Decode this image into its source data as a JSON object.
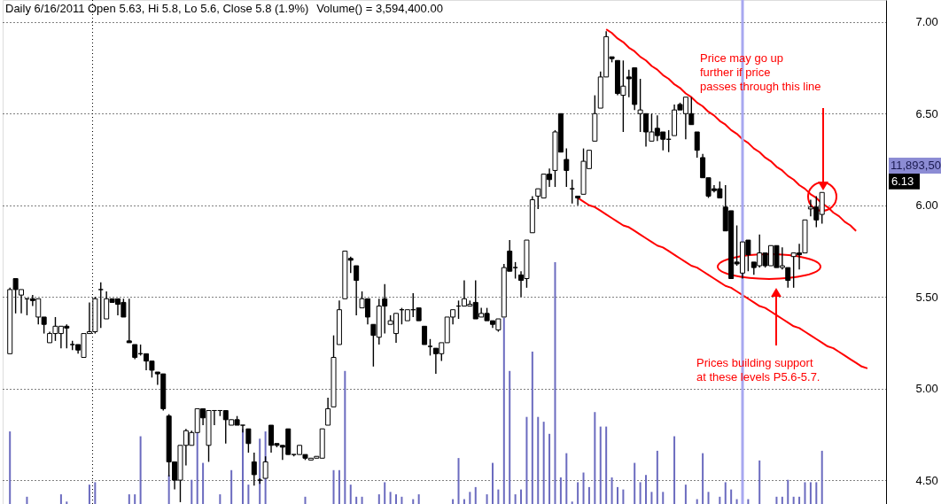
{
  "chart_data": {
    "type": "candlestick",
    "title": "Daily 6/16/2011 Open 5.63, Hi 5.8, Lo 5.6, Close 5.8 (1.9%)",
    "subtitle": "Volume() = 3,594,400.00",
    "categories": [
      null,
      null,
      null,
      null,
      null,
      null,
      null,
      null,
      null,
      null,
      null,
      null,
      null,
      null,
      null,
      null,
      null,
      null,
      null,
      null,
      null,
      null,
      null,
      null,
      null,
      null,
      null,
      null,
      null,
      null,
      null,
      null,
      null,
      null,
      null,
      null,
      null,
      null,
      null,
      null,
      null,
      null,
      null,
      null,
      null,
      null,
      null,
      null,
      null,
      null,
      null,
      null,
      null,
      null,
      null,
      null,
      null,
      null,
      null,
      null,
      null,
      null,
      null,
      null,
      null,
      null,
      null,
      null,
      null,
      null,
      null,
      null,
      null,
      null,
      null,
      null,
      null,
      null,
      null,
      null,
      null,
      null,
      null,
      null,
      null,
      null,
      null,
      null,
      null,
      null,
      null,
      null,
      null,
      null,
      null,
      null,
      null,
      null,
      null,
      null,
      null,
      null,
      null,
      null,
      null,
      null,
      null,
      null,
      null,
      null,
      null,
      null,
      null,
      null,
      null,
      null,
      null,
      null,
      null,
      null,
      null,
      null,
      null,
      null,
      null,
      null,
      null,
      null,
      null,
      null,
      null,
      null,
      null,
      null,
      null,
      null,
      null,
      null,
      null,
      null,
      null,
      null,
      null,
      null,
      null,
      null,
      null,
      null,
      null,
      null,
      null,
      null,
      null,
      null
    ],
    "ohlc": [
      [
        5.19,
        5.55,
        5.19,
        5.54
      ],
      [
        5.6,
        5.6,
        5.41,
        5.54
      ],
      [
        5.51,
        5.54,
        5.41,
        5.54
      ],
      [
        5.49,
        5.49,
        5.4,
        5.49
      ],
      [
        5.49,
        5.51,
        5.45,
        5.48
      ],
      [
        5.39,
        5.49,
        5.35,
        5.49
      ],
      [
        5.39,
        5.39,
        5.3,
        5.35
      ],
      [
        5.25,
        5.31,
        5.25,
        5.3
      ],
      [
        5.3,
        5.39,
        5.26,
        5.34
      ],
      [
        5.3,
        5.34,
        5.22,
        5.34
      ],
      [
        5.34,
        5.35,
        5.22,
        5.33
      ],
      [
        5.24,
        5.26,
        5.21,
        5.24
      ],
      [
        5.24,
        5.24,
        5.19,
        5.21
      ],
      [
        5.17,
        5.3,
        5.17,
        5.3
      ],
      [
        5.3,
        5.47,
        5.3,
        5.31
      ],
      [
        5.31,
        5.5,
        5.3,
        5.49
      ],
      [
        5.54,
        5.58,
        5.33,
        5.54
      ],
      [
        5.38,
        5.53,
        5.38,
        5.49
      ],
      [
        5.49,
        5.49,
        5.47,
        5.47
      ],
      [
        5.49,
        5.49,
        5.4,
        5.46
      ],
      [
        5.47,
        5.49,
        5.39,
        5.39
      ],
      [
        5.26,
        5.49,
        5.25,
        5.25
      ],
      [
        5.24,
        5.24,
        5.16,
        5.17
      ],
      [
        5.19,
        5.24,
        5.18,
        5.19
      ],
      [
        5.19,
        5.19,
        5.1,
        5.15
      ],
      [
        5.15,
        5.15,
        5.06,
        5.1
      ],
      [
        5.09,
        5.09,
        5.02,
        5.08
      ],
      [
        5.08,
        5.08,
        4.88,
        4.89
      ],
      [
        4.85,
        4.86,
        4.52,
        4.6
      ],
      [
        4.6,
        4.6,
        4.45,
        4.5
      ],
      [
        4.5,
        4.69,
        4.38,
        4.69
      ],
      [
        4.69,
        4.78,
        4.58,
        4.77
      ],
      [
        4.69,
        4.77,
        4.69,
        4.76
      ],
      [
        4.76,
        4.89,
        4.76,
        4.89
      ],
      [
        4.89,
        4.89,
        4.8,
        4.84
      ],
      [
        4.69,
        4.88,
        4.6,
        4.88
      ],
      [
        4.88,
        4.88,
        4.8,
        4.88
      ],
      [
        4.88,
        4.88,
        4.85,
        4.88
      ],
      [
        4.88,
        4.88,
        4.7,
        4.83
      ],
      [
        4.8,
        4.83,
        4.8,
        4.83
      ],
      [
        4.83,
        4.85,
        4.8,
        4.8
      ],
      [
        4.8,
        4.8,
        4.76,
        4.8
      ],
      [
        4.78,
        4.78,
        4.65,
        4.7
      ],
      [
        4.6,
        4.65,
        4.47,
        4.53
      ],
      [
        4.5,
        4.51,
        4.48,
        4.5
      ],
      [
        4.51,
        4.63,
        4.51,
        4.6
      ],
      [
        4.8,
        4.8,
        4.65,
        4.69
      ],
      [
        4.7,
        4.7,
        4.68,
        4.69
      ],
      [
        4.69,
        4.69,
        4.61,
        4.68
      ],
      [
        4.78,
        4.78,
        4.64,
        4.64
      ],
      [
        4.64,
        4.64,
        4.63,
        4.64
      ],
      [
        4.64,
        4.69,
        4.64,
        4.69
      ],
      [
        4.64,
        4.64,
        4.61,
        4.62
      ],
      [
        4.61,
        4.62,
        4.61,
        4.62
      ],
      [
        4.62,
        4.63,
        4.62,
        4.63
      ],
      [
        4.62,
        4.78,
        4.62,
        4.78
      ],
      [
        4.8,
        4.95,
        4.8,
        4.89
      ],
      [
        4.9,
        5.29,
        4.9,
        5.17
      ],
      [
        5.24,
        5.48,
        5.24,
        5.43
      ],
      [
        5.49,
        5.75,
        5.49,
        5.75
      ],
      [
        5.71,
        5.72,
        5.63,
        5.7
      ],
      [
        5.67,
        5.67,
        5.4,
        5.59
      ],
      [
        5.44,
        5.53,
        5.44,
        5.49
      ],
      [
        5.49,
        5.49,
        5.35,
        5.39
      ],
      [
        5.35,
        5.35,
        5.12,
        5.29
      ],
      [
        5.28,
        5.49,
        5.24,
        5.45
      ],
      [
        5.49,
        5.57,
        5.3,
        5.45
      ],
      [
        5.35,
        5.4,
        5.35,
        5.37
      ],
      [
        5.3,
        5.41,
        5.25,
        5.41
      ],
      [
        5.43,
        5.44,
        5.35,
        5.43
      ],
      [
        5.37,
        5.43,
        5.37,
        5.43
      ],
      [
        5.43,
        5.52,
        5.39,
        5.43
      ],
      [
        5.44,
        5.44,
        5.37,
        5.37
      ],
      [
        5.34,
        5.34,
        5.24,
        5.24
      ],
      [
        5.23,
        5.27,
        5.18,
        5.23
      ],
      [
        5.22,
        5.22,
        5.08,
        5.19
      ],
      [
        5.19,
        5.25,
        5.15,
        5.25
      ],
      [
        5.25,
        5.39,
        5.25,
        5.39
      ],
      [
        5.39,
        5.43,
        5.35,
        5.43
      ],
      [
        5.45,
        5.48,
        5.38,
        5.45
      ],
      [
        5.45,
        5.59,
        5.45,
        5.49
      ],
      [
        5.45,
        5.48,
        5.45,
        5.46
      ],
      [
        5.47,
        5.59,
        5.38,
        5.38
      ],
      [
        5.39,
        5.44,
        5.39,
        5.41
      ],
      [
        5.41,
        5.44,
        5.37,
        5.37
      ],
      [
        5.37,
        5.37,
        5.33,
        5.35
      ],
      [
        5.32,
        5.38,
        5.31,
        5.38
      ],
      [
        5.39,
        5.68,
        5.39,
        5.66
      ],
      [
        5.75,
        5.81,
        5.64,
        5.64
      ],
      [
        5.66,
        5.69,
        5.6,
        5.66
      ],
      [
        5.62,
        5.64,
        5.5,
        5.59
      ],
      [
        5.6,
        5.81,
        5.55,
        5.81
      ],
      [
        5.85,
        6.05,
        5.85,
        6.03
      ],
      [
        6.05,
        6.09,
        5.98,
        6.09
      ],
      [
        6.04,
        6.17,
        6.04,
        6.17
      ],
      [
        6.17,
        6.2,
        6.1,
        6.14
      ],
      [
        6.19,
        6.41,
        6.1,
        6.4
      ],
      [
        6.5,
        6.5,
        6.29,
        6.29
      ],
      [
        6.25,
        6.31,
        6.1,
        6.19
      ],
      [
        6.09,
        6.14,
        6.01,
        6.09
      ],
      [
        6.05,
        6.05,
        6.0,
        6.04
      ],
      [
        6.06,
        6.31,
        6.06,
        6.24
      ],
      [
        6.2,
        6.3,
        6.2,
        6.3
      ],
      [
        6.35,
        6.6,
        6.35,
        6.5
      ],
      [
        6.53,
        6.73,
        6.53,
        6.7
      ],
      [
        6.7,
        6.95,
        6.7,
        6.92
      ],
      [
        6.81,
        6.81,
        6.78,
        6.8
      ],
      [
        6.79,
        6.79,
        6.6,
        6.61
      ],
      [
        6.6,
        6.79,
        6.4,
        6.65
      ],
      [
        6.7,
        6.74,
        6.59,
        6.69
      ],
      [
        6.75,
        6.75,
        6.52,
        6.55
      ],
      [
        6.5,
        6.69,
        6.4,
        6.52
      ],
      [
        6.5,
        6.5,
        6.32,
        6.4
      ],
      [
        6.35,
        6.5,
        6.35,
        6.4
      ],
      [
        6.42,
        6.49,
        6.35,
        6.38
      ],
      [
        6.4,
        6.4,
        6.3,
        6.36
      ],
      [
        6.36,
        6.41,
        6.29,
        6.36
      ],
      [
        6.38,
        6.55,
        6.38,
        6.52
      ],
      [
        6.55,
        6.56,
        6.52,
        6.52
      ],
      [
        6.5,
        6.59,
        6.36,
        6.59
      ],
      [
        6.5,
        6.59,
        6.44,
        6.44
      ],
      [
        6.4,
        6.4,
        6.26,
        6.3
      ],
      [
        6.26,
        6.28,
        6.15,
        6.15
      ],
      [
        6.15,
        6.15,
        6.04,
        6.05
      ],
      [
        6.09,
        6.11,
        6.07,
        6.08
      ],
      [
        6.09,
        6.13,
        6.04,
        6.04
      ],
      [
        5.99,
        6.11,
        5.86,
        5.86
      ],
      [
        5.97,
        5.97,
        5.6,
        5.6
      ],
      [
        5.69,
        5.89,
        5.67,
        5.68
      ],
      [
        5.63,
        5.8,
        5.6,
        5.8
      ],
      [
        5.81,
        5.81,
        5.64,
        5.73
      ],
      [
        5.69,
        5.69,
        5.62,
        5.66
      ],
      [
        5.67,
        5.84,
        5.66,
        5.74
      ],
      [
        5.74,
        5.74,
        5.66,
        5.67
      ],
      [
        5.67,
        5.78,
        5.67,
        5.78
      ],
      [
        5.78,
        5.78,
        5.66,
        5.66
      ],
      [
        5.66,
        5.77,
        5.65,
        5.67
      ],
      [
        5.66,
        5.66,
        5.55,
        5.59
      ],
      [
        5.72,
        5.74,
        5.55,
        5.74
      ],
      [
        5.74,
        5.79,
        5.65,
        5.73
      ],
      [
        5.74,
        5.92,
        5.74,
        5.92
      ],
      [
        5.98,
        6.03,
        5.94,
        5.99
      ],
      [
        5.99,
        6.05,
        5.88,
        5.92
      ],
      [
        5.95,
        6.07,
        5.9,
        6.07
      ],
      null,
      null,
      null,
      null,
      null,
      null,
      null,
      null,
      null,
      null
    ],
    "series": [
      {
        "type": "line",
        "color": "#ff0000",
        "values": [
          null,
          null,
          null,
          null,
          null,
          null,
          null,
          null,
          null,
          null,
          null,
          null,
          null,
          null,
          null,
          null,
          null,
          null,
          null,
          null,
          null,
          null,
          null,
          null,
          null,
          null,
          null,
          null,
          null,
          null,
          null,
          null,
          null,
          null,
          null,
          null,
          null,
          null,
          null,
          null,
          null,
          null,
          null,
          null,
          null,
          null,
          null,
          null,
          null,
          null,
          null,
          null,
          null,
          null,
          null,
          null,
          null,
          null,
          null,
          null,
          null,
          null,
          null,
          null,
          null,
          null,
          null,
          null,
          null,
          null,
          null,
          null,
          null,
          null,
          null,
          null,
          null,
          null,
          null,
          null,
          null,
          null,
          null,
          null,
          null,
          null,
          null,
          null,
          null,
          null,
          null,
          null,
          null,
          null,
          null,
          null,
          null,
          null,
          null,
          null,
          null,
          null,
          null,
          null,
          null,
          6.96,
          6.94,
          6.91,
          6.89,
          6.86,
          6.84,
          6.81,
          6.79,
          6.76,
          6.74,
          6.71,
          6.69,
          6.66,
          6.64,
          6.61,
          6.59,
          6.56,
          6.54,
          6.51,
          6.49,
          6.46,
          6.44,
          6.41,
          6.39,
          6.36,
          6.34,
          6.31,
          6.29,
          6.26,
          6.24,
          6.21,
          6.19,
          6.16,
          6.14,
          6.11,
          6.09,
          6.06,
          6.04,
          6.01,
          5.99,
          5.96,
          5.94,
          5.91,
          5.89,
          5.86,
          null,
          null,
          null,
          null
        ]
      },
      {
        "type": "line",
        "color": "#ff0000",
        "values": [
          null,
          null,
          null,
          null,
          null,
          null,
          null,
          null,
          null,
          null,
          null,
          null,
          null,
          null,
          null,
          null,
          null,
          null,
          null,
          null,
          null,
          null,
          null,
          null,
          null,
          null,
          null,
          null,
          null,
          null,
          null,
          null,
          null,
          null,
          null,
          null,
          null,
          null,
          null,
          null,
          null,
          null,
          null,
          null,
          null,
          null,
          null,
          null,
          null,
          null,
          null,
          null,
          null,
          null,
          null,
          null,
          null,
          null,
          null,
          null,
          null,
          null,
          null,
          null,
          null,
          null,
          null,
          null,
          null,
          null,
          null,
          null,
          null,
          null,
          null,
          null,
          null,
          null,
          null,
          null,
          null,
          null,
          null,
          null,
          null,
          null,
          null,
          null,
          null,
          null,
          null,
          null,
          null,
          null,
          null,
          null,
          null,
          null,
          null,
          null,
          6.04,
          6.02,
          6.0,
          5.99,
          5.97,
          5.95,
          5.93,
          5.91,
          5.89,
          5.88,
          5.86,
          5.84,
          5.82,
          5.8,
          5.78,
          5.77,
          5.75,
          5.73,
          5.71,
          5.69,
          5.67,
          5.66,
          5.64,
          5.62,
          5.6,
          5.58,
          5.56,
          5.55,
          5.53,
          5.51,
          5.49,
          5.47,
          5.45,
          5.44,
          5.42,
          5.4,
          5.38,
          5.36,
          5.34,
          5.33,
          5.31,
          5.29,
          5.27,
          5.25,
          5.23,
          5.22,
          5.2,
          5.18,
          5.16,
          5.14,
          5.12,
          5.11,
          null,
          null
        ]
      }
    ],
    "ylim": [
      4.37,
      7.12
    ],
    "yticks": [
      {
        "value": 4.5,
        "label": "4.50"
      },
      {
        "value": 5.0,
        "label": "5.00"
      },
      {
        "value": 5.5,
        "label": "5.50"
      },
      {
        "value": 6.0,
        "label": "6.00"
      },
      {
        "value": 6.5,
        "label": "6.50"
      },
      {
        "value": 7.0,
        "label": "7.00"
      }
    ],
    "tick_labels": "y",
    "grid": "y",
    "annotations": [
      "Price may go up\nfurther if price\npasses through this line",
      "Prices building support\nat these levels P5.6-5.7.",
      {
        "text": "6.13",
        "y": 6.13
      },
      "11,893,50"
    ]
  }
}
